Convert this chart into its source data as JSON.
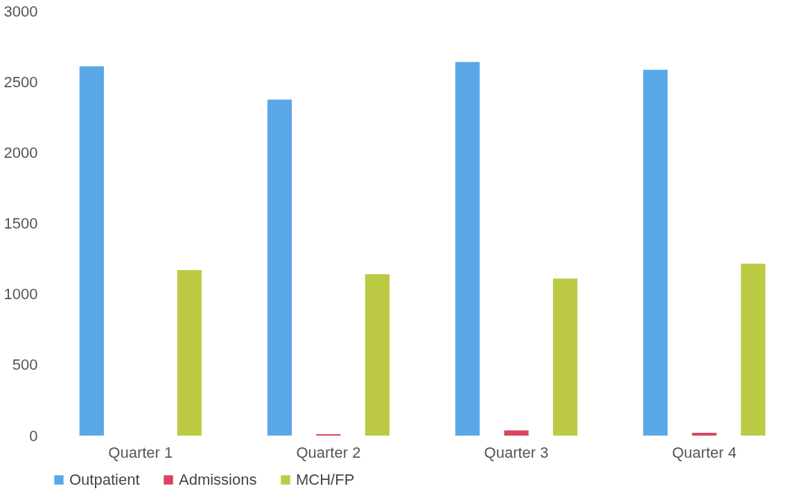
{
  "chart_data": {
    "type": "bar",
    "categories": [
      "Quarter 1",
      "Quarter 2",
      "Quarter 3",
      "Quarter 4"
    ],
    "series": [
      {
        "name": "Outpatient",
        "color": "#5aa7e8",
        "values": [
          2610,
          2375,
          2640,
          2585
        ]
      },
      {
        "name": "Admissions",
        "color": "#d9445e",
        "values": [
          0,
          10,
          37,
          20
        ]
      },
      {
        "name": "MCH/FP",
        "color": "#bccb43",
        "values": [
          1170,
          1140,
          1110,
          1215
        ]
      }
    ],
    "ylim": [
      0,
      3000
    ],
    "yticks": [
      0,
      500,
      1000,
      1500,
      2000,
      2500,
      3000
    ],
    "grid": false,
    "legend": "bottom"
  }
}
